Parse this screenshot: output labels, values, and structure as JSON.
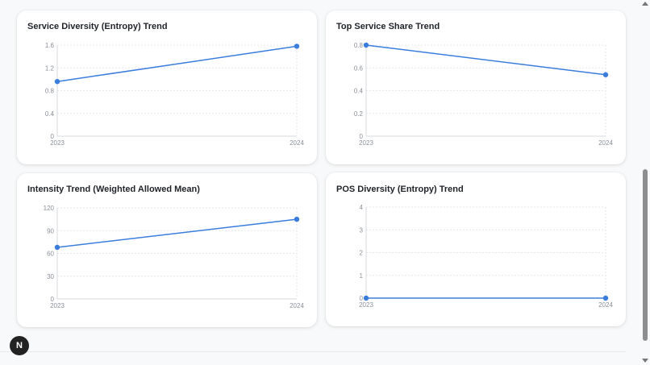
{
  "chart_data": [
    {
      "type": "line",
      "title": "Service Diversity (Entropy) Trend",
      "categories": [
        "2023",
        "2024"
      ],
      "series": [
        {
          "name": "Service Diversity",
          "values": [
            0.96,
            1.58
          ]
        }
      ],
      "yticks": [
        "0",
        "0.4",
        "0.8",
        "1.2",
        "1.6"
      ],
      "ylim": [
        0,
        1.6
      ],
      "grid": true
    },
    {
      "type": "line",
      "title": "Top Service Share Trend",
      "categories": [
        "2023",
        "2024"
      ],
      "series": [
        {
          "name": "Top Service Share",
          "values": [
            0.8,
            0.54
          ]
        }
      ],
      "yticks": [
        "0",
        "0.2",
        "0.4",
        "0.6",
        "0.8"
      ],
      "ylim": [
        0,
        0.8
      ],
      "grid": true
    },
    {
      "type": "line",
      "title": "Intensity Trend (Weighted Allowed Mean)",
      "categories": [
        "2023",
        "2024"
      ],
      "series": [
        {
          "name": "Intensity",
          "values": [
            68,
            105
          ]
        }
      ],
      "yticks": [
        "0",
        "30",
        "60",
        "90",
        "120"
      ],
      "ylim": [
        0,
        120
      ],
      "grid": true
    },
    {
      "type": "line",
      "title": "POS Diversity (Entropy) Trend",
      "categories": [
        "2023",
        "2024"
      ],
      "series": [
        {
          "name": "POS Diversity",
          "values": [
            0,
            0
          ]
        }
      ],
      "yticks": [
        "0",
        "1",
        "2",
        "3",
        "4"
      ],
      "ylim": [
        0,
        4
      ],
      "grid": true
    }
  ],
  "colors": {
    "line": "#3b7ddd",
    "grid": "#e5e7eb",
    "axis": "#d6d9de"
  },
  "fab": {
    "label": "N"
  }
}
